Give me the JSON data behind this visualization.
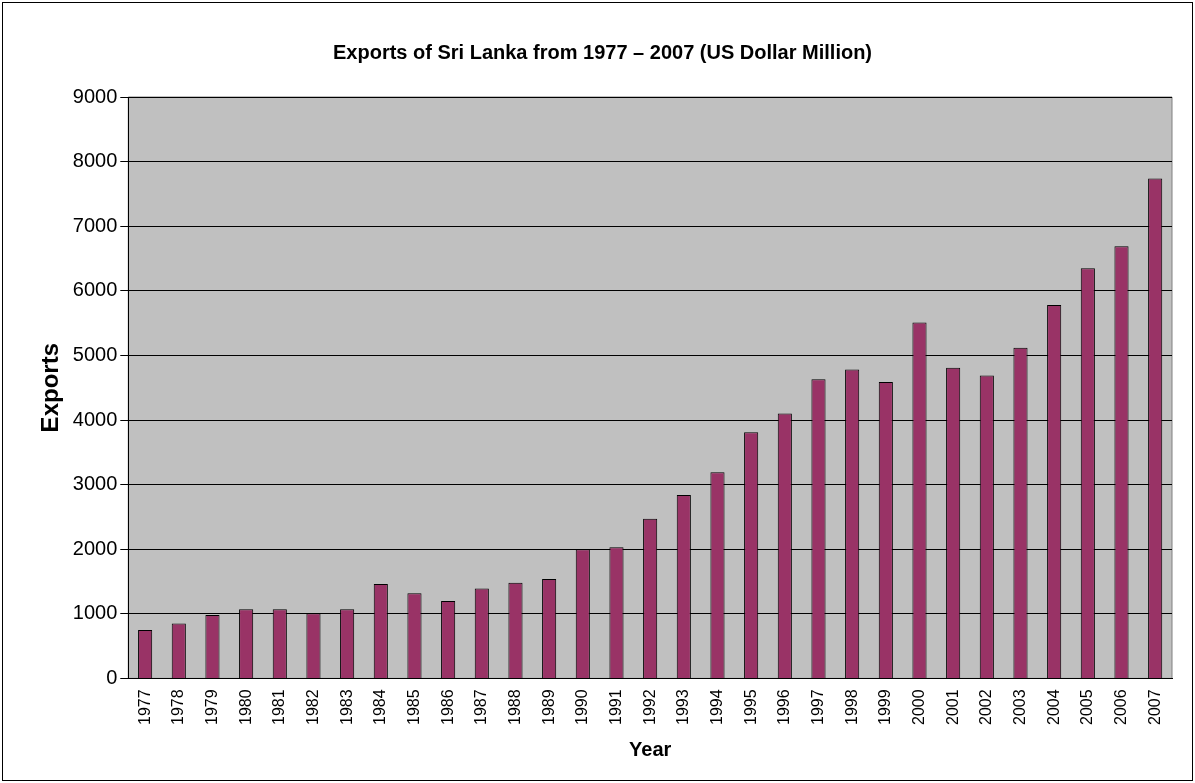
{
  "chart_data": {
    "type": "bar",
    "title": "Exports of Sri Lanka from 1977 – 2007 (US Dollar Million)",
    "xlabel": "Year",
    "ylabel": "Exports",
    "categories": [
      "1977",
      "1978",
      "1979",
      "1980",
      "1981",
      "1982",
      "1983",
      "1984",
      "1985",
      "1986",
      "1987",
      "1988",
      "1989",
      "1990",
      "1991",
      "1992",
      "1993",
      "1994",
      "1995",
      "1996",
      "1997",
      "1998",
      "1999",
      "2000",
      "2001",
      "2002",
      "2003",
      "2004",
      "2005",
      "2006",
      "2007"
    ],
    "values": [
      750,
      850,
      980,
      1070,
      1070,
      1010,
      1070,
      1460,
      1320,
      1200,
      1390,
      1480,
      1540,
      2000,
      2030,
      2470,
      2840,
      3190,
      3810,
      4100,
      4630,
      4780,
      4590,
      5510,
      4810,
      4690,
      5120,
      5780,
      6350,
      6690,
      7740
    ],
    "color": "#993366",
    "ylim": [
      0,
      9000
    ],
    "yticks": [
      0,
      1000,
      2000,
      3000,
      4000,
      5000,
      6000,
      7000,
      8000,
      9000
    ],
    "grid": "y",
    "legend": false
  }
}
